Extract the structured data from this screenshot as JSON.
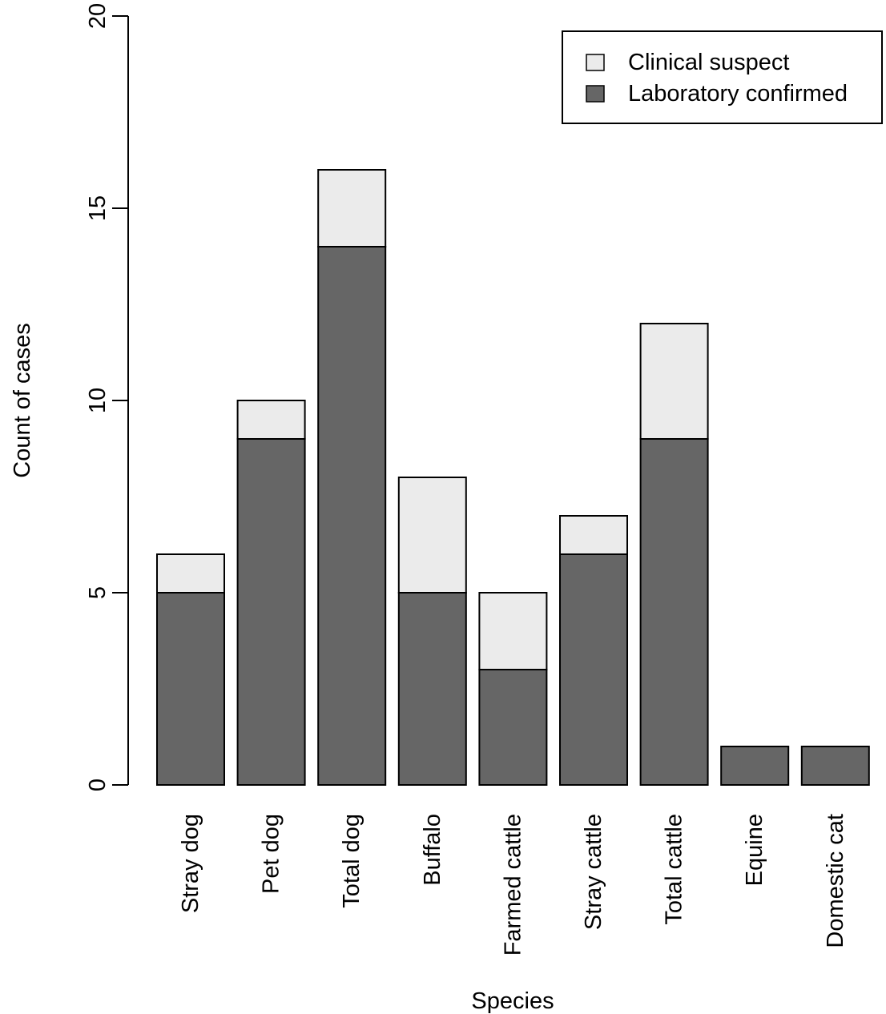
{
  "chart_data": {
    "type": "bar",
    "stacked": true,
    "title": "",
    "xlabel": "Species",
    "ylabel": "Count of cases",
    "ylim": [
      0,
      20
    ],
    "yticks": [
      0,
      5,
      10,
      15,
      20
    ],
    "categories": [
      "Stray dog",
      "Pet dog",
      "Total dog",
      "Buffalo",
      "Farmed cattle",
      "Stray cattle",
      "Total cattle",
      "Equine",
      "Domestic cat"
    ],
    "series": [
      {
        "name": "Laboratory confirmed",
        "color": "#666666",
        "values": [
          5,
          9,
          14,
          5,
          3,
          6,
          9,
          1,
          1
        ]
      },
      {
        "name": "Clinical suspect",
        "color": "#ebebeb",
        "values": [
          1,
          1,
          2,
          3,
          2,
          1,
          3,
          0,
          0
        ]
      }
    ],
    "legend": {
      "position": "top-right",
      "entries": [
        {
          "label": "Clinical suspect",
          "color": "#ebebeb"
        },
        {
          "label": "Laboratory confirmed",
          "color": "#666666"
        }
      ]
    },
    "grid": false
  }
}
